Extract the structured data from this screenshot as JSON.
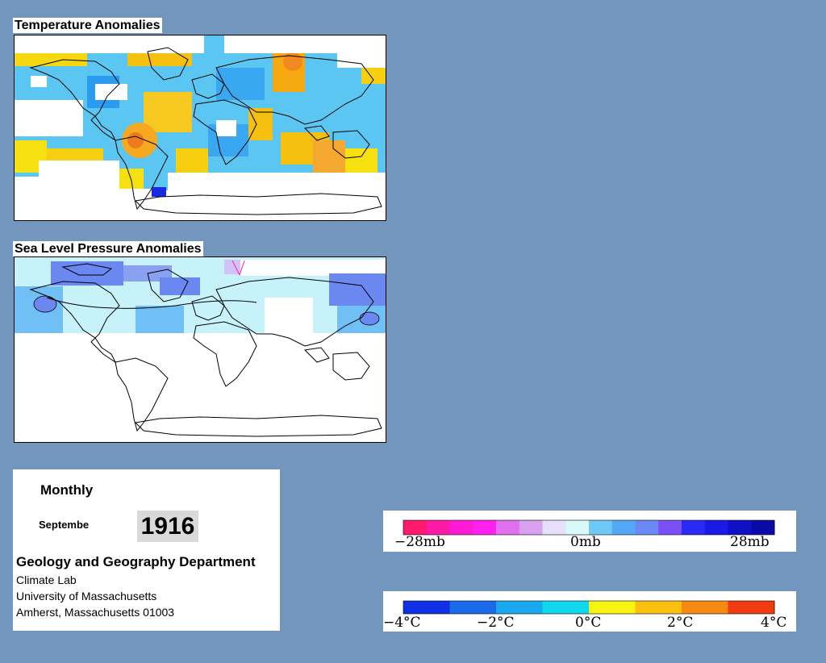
{
  "temperature_panel": {
    "title": "Temperature Anomalies"
  },
  "pressure_panel": {
    "title": "Sea Level Pressure Anomalies"
  },
  "info": {
    "period": "Monthly",
    "month": "Septembe",
    "year": "1916",
    "department": "Geology and Geography Department",
    "lab": "Climate Lab",
    "university": "University of Massachusetts",
    "city": "Amherst, Massachusetts 01003"
  },
  "pressure_legend": {
    "labels": [
      "−28mb",
      "0mb",
      "28mb"
    ],
    "colors": [
      "#ff1a6e",
      "#ff1aa6",
      "#ff1ad6",
      "#ff22ee",
      "#e070ee",
      "#d8a0ee",
      "#e6e0fa",
      "#d8f8fa",
      "#70c8f6",
      "#55a8f6",
      "#6a88f6",
      "#7a50f6",
      "#2a2af6",
      "#1a1ae6",
      "#1010c6",
      "#0a0aa6"
    ]
  },
  "temperature_legend": {
    "labels": [
      "−4°C",
      "−2°C",
      "0°C",
      "2°C",
      "4°C"
    ],
    "colors": [
      "#1030e6",
      "#1a6aea",
      "#1aa8ee",
      "#10d6ee",
      "#f6f410",
      "#fac010",
      "#f68a10",
      "#f03a10"
    ]
  },
  "palette": {
    "background": "#7396be",
    "land_outline": "#000000",
    "no_data": "#ffffff"
  }
}
